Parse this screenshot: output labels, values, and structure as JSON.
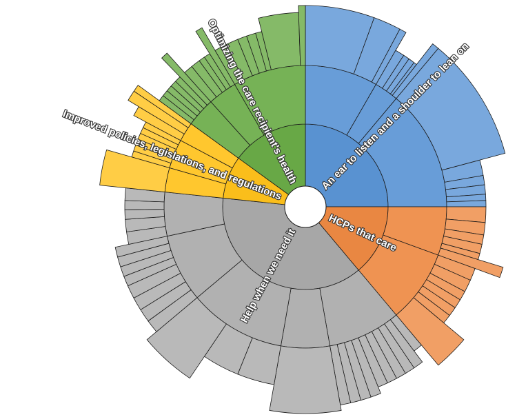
{
  "chart_data": {
    "type": "sunburst",
    "center_hole": true,
    "colors": {
      "blue": "#5b95d5",
      "orange": "#ee8a43",
      "gray": "#aaaaaa",
      "yellow": "#ffc21c",
      "green": "#6aab47"
    },
    "categories": [
      {
        "name": "An ear to listen and a shoulder to lean on",
        "color": "#5b95d5",
        "value": 90,
        "children": [
          {
            "value": 30,
            "children": [
              {
                "value": 20,
                "depth": 3
              },
              {
                "value": 8,
                "depth": 3
              },
              {
                "value": 2,
                "depth": 3
              }
            ]
          },
          {
            "value": 10,
            "children": [
              {
                "value": 3,
                "depth": 1
              },
              {
                "value": 2,
                "depth": 1
              },
              {
                "value": 2,
                "depth": 1
              },
              {
                "value": 1,
                "depth": 1
              },
              {
                "value": 2,
                "depth": 0
              }
            ]
          },
          {
            "value": 50,
            "children": [
              {
                "value": 35,
                "depth": 0
              },
              {
                "value": 5,
                "depth": 1
              },
              {
                "value": 3,
                "depth": 1
              },
              {
                "value": 3,
                "depth": 1
              },
              {
                "value": 2,
                "depth": 1
              },
              {
                "value": 2,
                "depth": 1
              }
            ]
          }
        ]
      },
      {
        "name": "HCPs that care",
        "color": "#ee8a43",
        "value": 50,
        "children": [
          {
            "value": 20,
            "children": [
              {
                "value": 5,
                "depth": 1
              },
              {
                "value": 4,
                "depth": 1
              },
              {
                "value": 3,
                "depth": 1
              },
              {
                "value": 3,
                "depth": 1
              },
              {
                "value": 2,
                "depth": 1
              },
              {
                "value": 3,
                "depth": 0
              }
            ]
          },
          {
            "value": 30,
            "children": [
              {
                "value": 4,
                "depth": 1
              },
              {
                "value": 4,
                "depth": 1
              },
              {
                "value": 3,
                "depth": 1
              },
              {
                "value": 3,
                "depth": 1
              },
              {
                "value": 3,
                "depth": 1
              },
              {
                "value": 3,
                "depth": 1
              },
              {
                "value": 10,
                "depth": 0
              }
            ]
          }
        ]
      },
      {
        "name": "Help when we need it",
        "color": "#aaaaaa",
        "value": 136,
        "children": [
          {
            "value": 30,
            "children": [
              {
                "value": 3,
                "depth": 1
              },
              {
                "value": 3,
                "depth": 2
              },
              {
                "value": 3,
                "depth": 2
              },
              {
                "value": 3,
                "depth": 2
              },
              {
                "value": 3,
                "depth": 2
              },
              {
                "value": 3,
                "depth": 2
              },
              {
                "value": 3,
                "depth": 3
              },
              {
                "value": 3,
                "depth": 3
              },
              {
                "value": 3,
                "depth": 3
              },
              {
                "value": 3,
                "depth": 3
              }
            ]
          },
          {
            "value": 20,
            "children": [
              {
                "value": 20,
                "depth": 0
              }
            ]
          },
          {
            "value": 40,
            "children": [
              {
                "value": 12,
                "depth": 1
              },
              {
                "value": 12,
                "depth": 1
              },
              {
                "value": 16,
                "depth": 0
              }
            ]
          },
          {
            "value": 28,
            "children": [
              {
                "value": 4,
                "depth": 2
              },
              {
                "value": 4,
                "depth": 2
              },
              {
                "value": 4,
                "depth": 2
              },
              {
                "value": 4,
                "depth": 2
              },
              {
                "value": 3,
                "depth": 2
              },
              {
                "value": 3,
                "depth": 2
              },
              {
                "value": 3,
                "depth": 2
              },
              {
                "value": 3,
                "depth": 2
              }
            ]
          },
          {
            "value": 18,
            "children": [
              {
                "value": 4,
                "depth": 1
              },
              {
                "value": 4,
                "depth": 1
              },
              {
                "value": 3,
                "depth": 1
              },
              {
                "value": 3,
                "depth": 1
              },
              {
                "value": 4,
                "depth": 1
              }
            ]
          }
        ]
      },
      {
        "name": "Improved policies, legislations, and regulations",
        "color": "#ffc21c",
        "value": 30,
        "children": [
          {
            "value": 10,
            "children": [
              {
                "value": 10,
                "depth": 0
              }
            ]
          },
          {
            "value": 12,
            "children": [
              {
                "value": 2,
                "depth": 1
              },
              {
                "value": 2,
                "depth": 1
              },
              {
                "value": 2,
                "depth": 1
              },
              {
                "value": 2,
                "depth": 1
              },
              {
                "value": 2,
                "depth": 1
              },
              {
                "value": 2,
                "depth": 1
              }
            ]
          },
          {
            "value": 8,
            "children": [
              {
                "value": 3,
                "depth": 2
              },
              {
                "value": 3,
                "depth": 0
              },
              {
                "value": 2,
                "depth": 0
              }
            ]
          }
        ]
      },
      {
        "name": "Optimizing the care recipient's health",
        "color": "#6aab47",
        "value": 54,
        "children": [
          {
            "value": 12,
            "children": [
              {
                "value": 2,
                "depth": 1
              },
              {
                "value": 2,
                "depth": 1
              },
              {
                "value": 2,
                "depth": 1
              },
              {
                "value": 2,
                "depth": 1
              },
              {
                "value": 2,
                "depth": 1
              },
              {
                "value": 2,
                "depth": 0
              }
            ]
          },
          {
            "value": 12,
            "children": [
              {
                "value": 3,
                "depth": 1
              },
              {
                "value": 3,
                "depth": 1
              },
              {
                "value": 2,
                "depth": 1
              },
              {
                "value": 2,
                "depth": 1
              },
              {
                "value": 2,
                "depth": 0
              }
            ]
          },
          {
            "value": 30,
            "children": [
              {
                "value": 4,
                "depth": 1
              },
              {
                "value": 4,
                "depth": 1
              },
              {
                "value": 3,
                "depth": 1
              },
              {
                "value": 3,
                "depth": 1
              },
              {
                "value": 2,
                "depth": 1
              },
              {
                "value": 12,
                "depth": 2
              },
              {
                "value": 2,
                "depth": 3
              }
            ]
          }
        ]
      }
    ]
  }
}
